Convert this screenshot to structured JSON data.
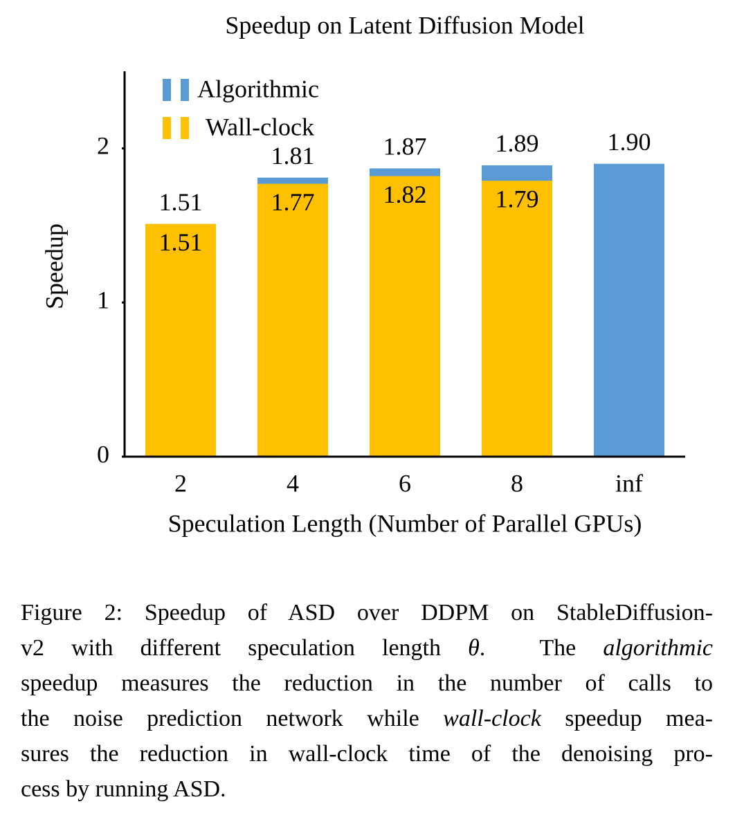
{
  "chart_data": {
    "type": "bar",
    "mode": "overlay",
    "title": "Speedup on Latent Diffusion Model",
    "x_label": "Speculation Length (Number of Parallel GPUs)",
    "y_label": "Speedup",
    "categories": [
      "2",
      "4",
      "6",
      "8",
      "inf"
    ],
    "series": [
      {
        "name": "Algorithmic",
        "color": "#5b9bd5",
        "values": [
          1.51,
          1.81,
          1.87,
          1.89,
          1.9
        ],
        "value_labels": [
          "1.51",
          "1.81",
          "1.87",
          "1.89",
          "1.90"
        ],
        "label_position": "above"
      },
      {
        "name": "Wall-clock",
        "color": "#ffc000",
        "values": [
          1.51,
          1.77,
          1.82,
          1.79,
          null
        ],
        "label_position": "inside"
      }
    ],
    "ylim": [
      0,
      2.5
    ],
    "yticks": [
      0,
      1,
      2
    ],
    "grid": false,
    "legend": "top-left"
  },
  "caption": {
    "lines": [
      [
        {
          "text": "Figure 2: Speedup of ASD over DDPM on StableDiffusion-",
          "italic": false
        }
      ],
      [
        {
          "text": "v2 with different speculation length ",
          "italic": false
        },
        {
          "text": "θ",
          "italic": true
        },
        {
          "text": ".  The ",
          "italic": false
        },
        {
          "text": "algorithmic",
          "italic": true
        }
      ],
      [
        {
          "text": "speedup measures the reduction in the number of calls to",
          "italic": false
        }
      ],
      [
        {
          "text": "the noise prediction network while ",
          "italic": false
        },
        {
          "text": "wall-clock",
          "italic": true
        },
        {
          "text": " speedup mea-",
          "italic": false
        }
      ],
      [
        {
          "text": "sures the reduction in wall-clock time of the denoising pro-",
          "italic": false
        }
      ],
      [
        {
          "text": "cess by running ASD.",
          "italic": false
        }
      ]
    ]
  }
}
